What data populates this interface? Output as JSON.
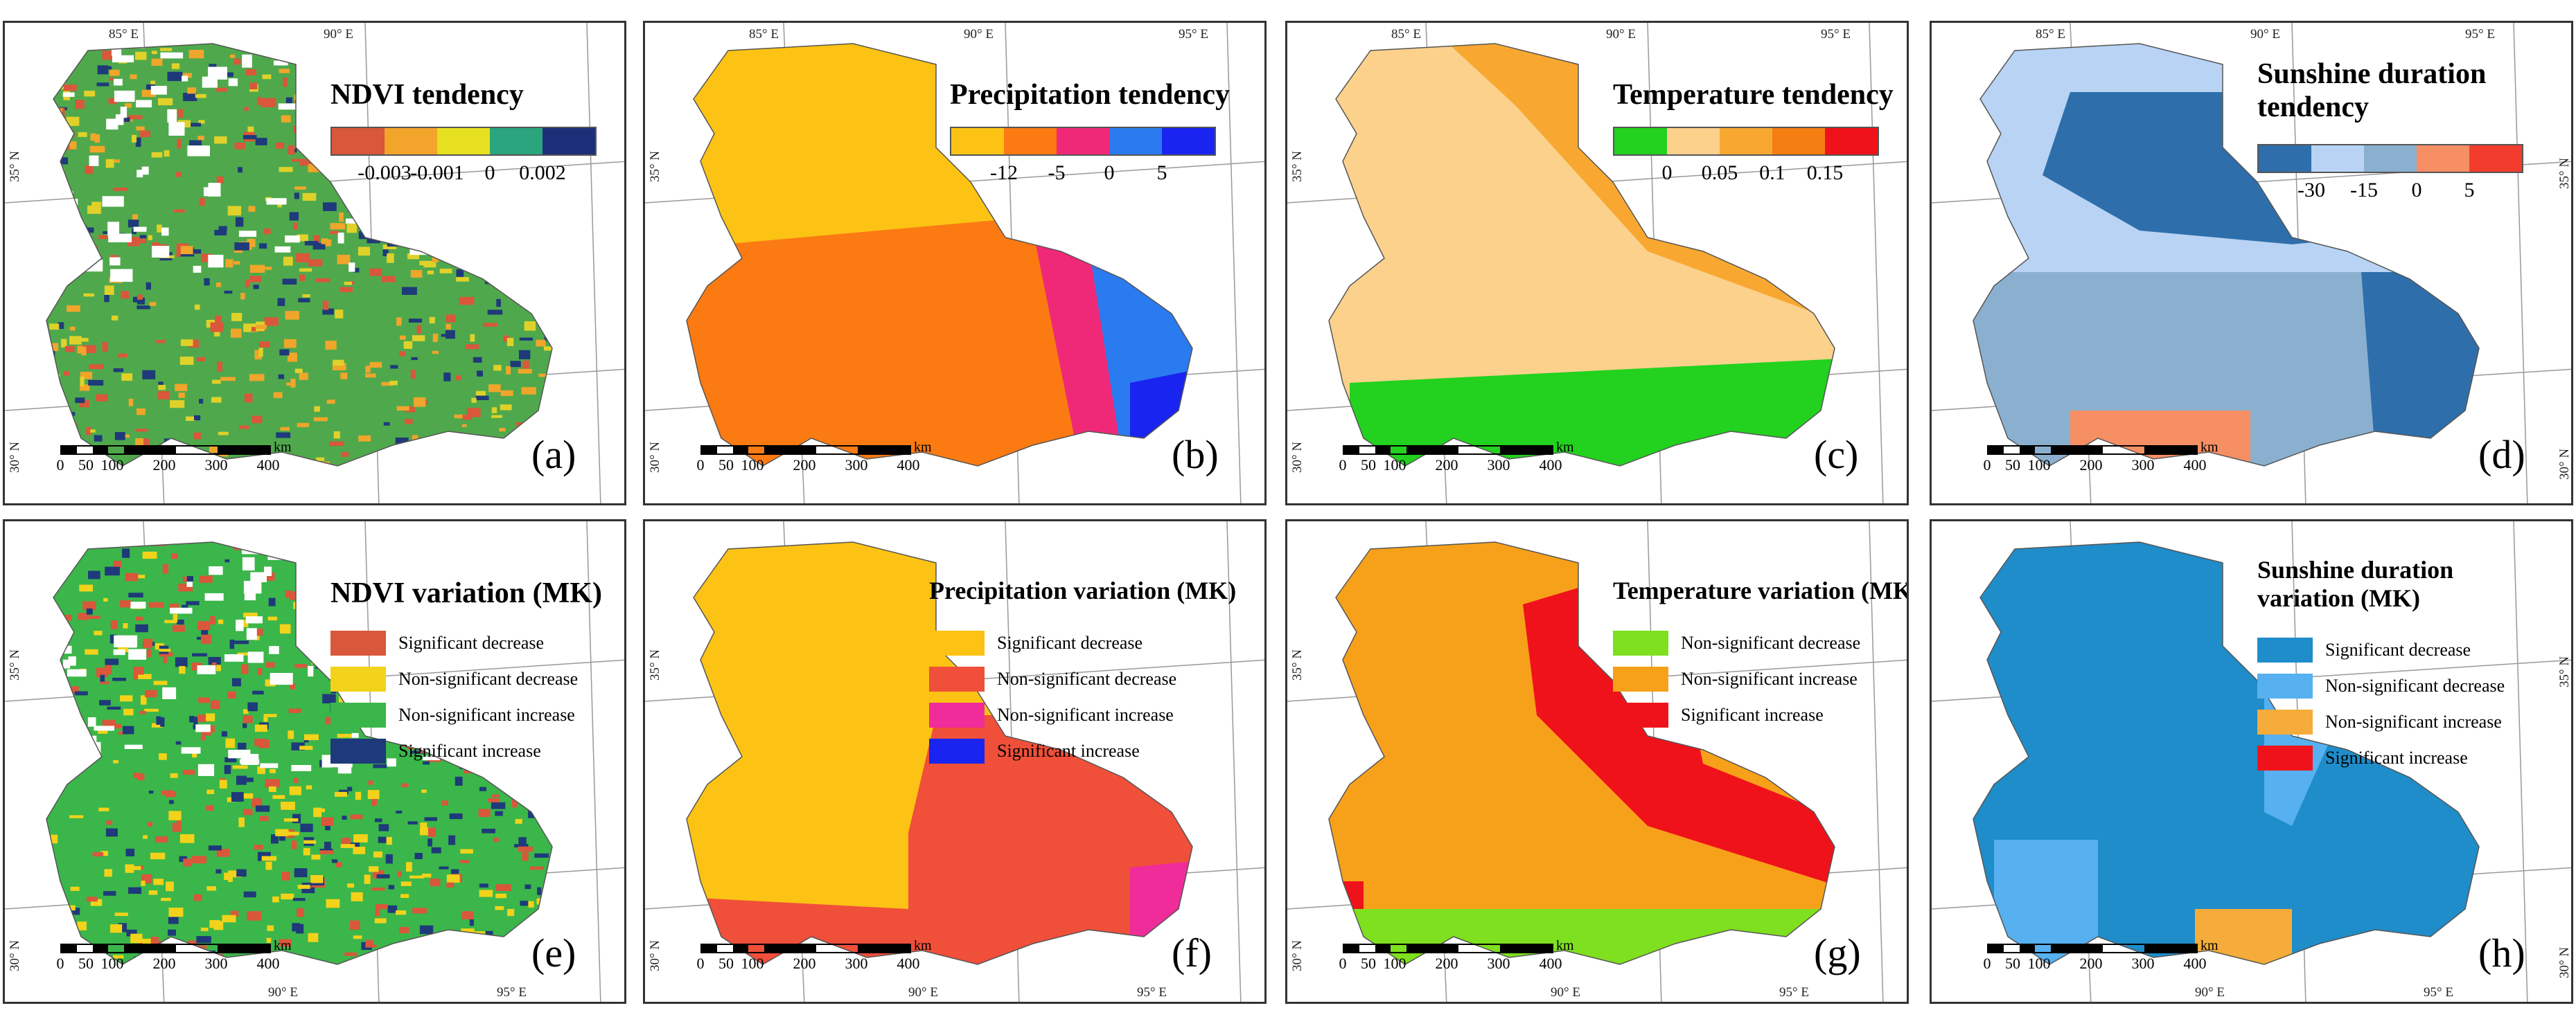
{
  "scale_bar": {
    "unit": "km",
    "ticks": [
      "0",
      "50",
      "100",
      "200",
      "300",
      "400"
    ]
  },
  "panels": [
    {
      "id": "a",
      "label": "(a)",
      "title": "NDVI tendency",
      "type": "ramp",
      "colors": [
        "#d9573a",
        "#f3a42b",
        "#e6e021",
        "#2aa57e",
        "#1e2f7a"
      ],
      "ticks": [
        "-0.003",
        "-0.001",
        "0",
        "0.002"
      ],
      "map_colors": [
        "#4fa94c",
        "#e0d12a",
        "#f0a52b",
        "#d9573a",
        "#1e3a7a"
      ],
      "coords": {
        "top": [
          "85° E",
          "90° E"
        ],
        "left": [
          "35° N",
          "30° N"
        ]
      }
    },
    {
      "id": "b",
      "label": "(b)",
      "title": "Precipitation tendency",
      "type": "ramp",
      "colors": [
        "#fcc314",
        "#fb7a12",
        "#f02878",
        "#2a7bf0",
        "#1a24f0"
      ],
      "ticks": [
        "-12",
        "-5",
        "0",
        "5"
      ],
      "map_colors": [
        "#fcc314",
        "#fb7a12",
        "#f02878",
        "#2a7bf0",
        "#1a24f0"
      ],
      "coords": {
        "top": [
          "85° E",
          "90° E",
          "95° E"
        ],
        "left": [
          "35° N",
          "30° N"
        ]
      }
    },
    {
      "id": "c",
      "label": "(c)",
      "title": "Temperature tendency",
      "type": "ramp",
      "colors": [
        "#22d21e",
        "#fbd18c",
        "#f8a831",
        "#f57e12",
        "#f0121b"
      ],
      "ticks": [
        "0",
        "0.05",
        "0.1",
        "0.15"
      ],
      "map_colors": [
        "#fbd18c",
        "#f8a831",
        "#f57e12",
        "#f0121b",
        "#22d21e"
      ],
      "coords": {
        "top": [
          "85° E",
          "90° E",
          "95° E"
        ],
        "left": [
          "35° N",
          "30° N"
        ]
      }
    },
    {
      "id": "d",
      "label": "(d)",
      "title": "Sunshine duration\ntendency",
      "type": "ramp",
      "colors": [
        "#2e6fab",
        "#b8d3f4",
        "#8bb0cf",
        "#f78f64",
        "#f23c2d"
      ],
      "ticks": [
        "-30",
        "-15",
        "0",
        "5"
      ],
      "map_colors": [
        "#b8d3f4",
        "#2e6fab",
        "#8bb0cf",
        "#f78f64"
      ],
      "coords": {
        "top": [
          "85° E",
          "90° E",
          "95° E"
        ],
        "right": [
          "35° N",
          "30° N"
        ]
      }
    },
    {
      "id": "e",
      "label": "(e)",
      "title": "NDVI variation (MK)",
      "type": "categories",
      "categories": [
        {
          "name": "Significant decrease",
          "color": "#d9573a"
        },
        {
          "name": "Non-significant decrease",
          "color": "#f2d21a"
        },
        {
          "name": "Non-significant increase",
          "color": "#3bb64a"
        },
        {
          "name": "Significant increase",
          "color": "#1e3a7a"
        }
      ],
      "map_colors": [
        "#3bb64a",
        "#f2d21a",
        "#d9573a",
        "#1e3a7a"
      ],
      "coords": {
        "bottom": [
          "90° E",
          "95° E"
        ],
        "left": [
          "35° N",
          "30° N"
        ]
      }
    },
    {
      "id": "f",
      "label": "(f)",
      "title": "Precipitation variation (MK)",
      "type": "categories",
      "categories": [
        {
          "name": "Significant decrease",
          "color": "#fcc314"
        },
        {
          "name": "Non-significant decrease",
          "color": "#f04f3a"
        },
        {
          "name": "Non-significant increase",
          "color": "#f02c9a"
        },
        {
          "name": "Significant increase",
          "color": "#1a24f0"
        }
      ],
      "map_colors": [
        "#fcc314",
        "#f04f3a",
        "#f02c9a"
      ],
      "coords": {
        "bottom": [
          "90° E",
          "95° E"
        ],
        "left": [
          "35° N",
          "30° N"
        ]
      }
    },
    {
      "id": "g",
      "label": "(g)",
      "title": "Temperature variation (MK)",
      "type": "categories",
      "categories": [
        {
          "name": "Non-significant decrease",
          "color": "#7ee01e"
        },
        {
          "name": "Non-significant increase",
          "color": "#f7a11a"
        },
        {
          "name": "Significant increase",
          "color": "#f0121b"
        }
      ],
      "map_colors": [
        "#f7a11a",
        "#f0121b",
        "#7ee01e"
      ],
      "coords": {
        "bottom": [
          "90° E",
          "95° E"
        ],
        "left": [
          "35° N",
          "30° N"
        ]
      }
    },
    {
      "id": "h",
      "label": "(h)",
      "title": "Sunshine duration\nvariation (MK)",
      "type": "categories",
      "categories": [
        {
          "name": "Significant decrease",
          "color": "#1f8dc9"
        },
        {
          "name": "Non-significant decrease",
          "color": "#57b0f0"
        },
        {
          "name": "Non-significant increase",
          "color": "#f5ac3a"
        },
        {
          "name": "Significant increase",
          "color": "#f0121b"
        }
      ],
      "map_colors": [
        "#1f8dc9",
        "#57b0f0",
        "#f5ac3a"
      ],
      "coords": {
        "bottom": [
          "90° E",
          "95° E"
        ],
        "right": [
          "35° N",
          "30° N"
        ]
      }
    }
  ]
}
